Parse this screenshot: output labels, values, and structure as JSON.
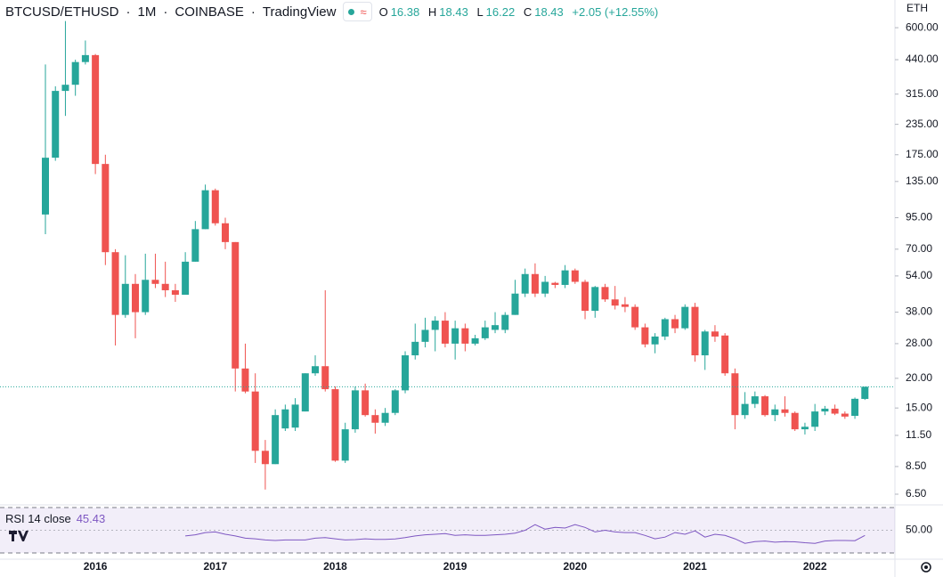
{
  "header": {
    "symbol": "BTCUSD/ETHUSD",
    "interval": "1M",
    "exchange": "COINBASE",
    "source": "TradingView",
    "ohlc_labels": [
      "O",
      "H",
      "L",
      "C"
    ],
    "change": "+2.05 (+12.55%)"
  },
  "chart_data": [
    {
      "type": "candlestick",
      "unit": "ETH",
      "categories": [
        null,
        null,
        null,
        null,
        null,
        "2016",
        null,
        null,
        null,
        null,
        null,
        null,
        null,
        null,
        null,
        null,
        null,
        "2017",
        null,
        null,
        null,
        null,
        null,
        null,
        null,
        null,
        null,
        null,
        null,
        "2018",
        null,
        null,
        null,
        null,
        null,
        null,
        null,
        null,
        null,
        null,
        null,
        "2019",
        null,
        null,
        null,
        null,
        null,
        null,
        null,
        null,
        null,
        null,
        null,
        "2020",
        null,
        null,
        null,
        null,
        null,
        null,
        null,
        null,
        null,
        null,
        null,
        "2021",
        null,
        null,
        null,
        null,
        null,
        null,
        null,
        null,
        null,
        null,
        null,
        "2022",
        null,
        null,
        null,
        null,
        null
      ],
      "open": [
        98,
        170,
        325,
        345,
        430,
        460,
        160,
        68,
        37,
        50,
        38,
        52,
        50,
        47,
        45,
        62,
        85,
        124,
        90,
        75,
        22,
        17.6,
        9.9,
        8.7,
        12.3,
        12.4,
        14.5,
        21,
        22.5,
        18,
        9,
        12.2,
        17.8,
        14,
        13,
        14.3,
        17.8,
        25,
        28.5,
        32,
        35,
        28,
        32.5,
        28,
        29.5,
        32,
        32,
        37,
        45.5,
        55,
        45.5,
        50.5,
        49.5,
        57,
        51,
        38.5,
        48.5,
        43,
        41,
        40,
        32.8,
        27.8,
        30,
        35.5,
        32.5,
        40,
        25,
        31.5,
        30.3,
        21,
        14,
        15.6,
        16.8,
        14,
        14.8,
        14.3,
        12.2,
        12.5,
        14.5,
        14.9,
        14.2,
        13.9,
        16.38
      ],
      "high": [
        420,
        340,
        640,
        440,
        530,
        465,
        175,
        70,
        66,
        55,
        67,
        67,
        62,
        50,
        68,
        92,
        131,
        126,
        95,
        75,
        28,
        21,
        11,
        14.8,
        15.5,
        16.5,
        21,
        25,
        47,
        18.5,
        13,
        18.5,
        19,
        14.8,
        15,
        18,
        26,
        34,
        36,
        36.5,
        38,
        35,
        34,
        30.5,
        35,
        38,
        38,
        52,
        58,
        61,
        54,
        51,
        60,
        58,
        52,
        49,
        50,
        49,
        44,
        41,
        34,
        31,
        36,
        37,
        41,
        41.6,
        32,
        33.5,
        31,
        22,
        17.5,
        17.6,
        17,
        15.5,
        16.8,
        14.5,
        13,
        15.6,
        15.3,
        15.5,
        14.5,
        16.6,
        18.43
      ],
      "low": [
        81,
        165,
        255,
        310,
        420,
        145,
        60,
        27.5,
        36,
        29.5,
        37,
        48,
        44,
        42,
        45,
        62,
        85,
        88,
        70,
        17.6,
        17.3,
        8.8,
        6.8,
        8.7,
        12,
        12,
        14.5,
        20.5,
        17.6,
        8.9,
        8.8,
        11.8,
        13.8,
        11.7,
        12.6,
        14,
        17.3,
        24,
        27,
        26,
        27,
        24,
        26,
        27.5,
        29,
        31,
        31,
        37,
        44,
        44,
        44,
        48,
        48,
        50,
        35.5,
        36,
        42,
        39,
        38,
        32,
        27,
        25.5,
        29,
        31,
        32,
        23.5,
        21.7,
        28.5,
        20.5,
        12.2,
        13.5,
        15,
        13.8,
        13.2,
        13.8,
        12,
        11.6,
        12,
        14,
        14,
        13.5,
        13.5,
        16.22
      ],
      "close": [
        170,
        325,
        345,
        430,
        460,
        160,
        68,
        37,
        50,
        38,
        52,
        50,
        47,
        45,
        62,
        85,
        124,
        90,
        75,
        22,
        17.6,
        9.9,
        8.7,
        14,
        14.8,
        15.5,
        21,
        22.5,
        18,
        9,
        12.2,
        17.8,
        14,
        13,
        14.3,
        17.8,
        25,
        28.5,
        32,
        35,
        28,
        32.5,
        28,
        29.5,
        32.8,
        33.5,
        37,
        45.5,
        55,
        45.5,
        51,
        49.5,
        57,
        51,
        38.5,
        48.5,
        43,
        40.5,
        40,
        32.8,
        27.8,
        30,
        35.5,
        32.5,
        40,
        25,
        31.5,
        30,
        21,
        14,
        15.6,
        16.8,
        14,
        14.8,
        14.3,
        12.2,
        12.5,
        14.5,
        14.9,
        14.2,
        13.8,
        16.4,
        18.43
      ],
      "up_color": "#26a69a",
      "down_color": "#ef5350",
      "log_scale": true,
      "ylim": [
        5.86,
        785
      ],
      "yticks": [
        {
          "value": 600,
          "label": "600.00"
        },
        {
          "value": 440,
          "label": "440.00"
        },
        {
          "value": 315,
          "label": "315.00"
        },
        {
          "value": 235,
          "label": "235.00"
        },
        {
          "value": 175,
          "label": "175.00"
        },
        {
          "value": 135,
          "label": "135.00"
        },
        {
          "value": 95,
          "label": "95.00"
        },
        {
          "value": 70,
          "label": "70.00"
        },
        {
          "value": 54,
          "label": "54.00"
        },
        {
          "value": 38,
          "label": "38.00"
        },
        {
          "value": 28,
          "label": "28.00"
        },
        {
          "value": 20,
          "label": "20.00"
        },
        {
          "value": 15,
          "label": "15.00"
        },
        {
          "value": 11.5,
          "label": "11.50"
        },
        {
          "value": 8.5,
          "label": "8.50"
        },
        {
          "value": 6.5,
          "label": "6.50"
        }
      ],
      "price_line": true,
      "grid": false
    },
    {
      "type": "line",
      "title": "RSI 14 close",
      "color": "#7e57c2",
      "values": [
        null,
        null,
        null,
        null,
        null,
        null,
        null,
        null,
        null,
        null,
        null,
        null,
        null,
        null,
        45,
        46,
        48,
        48.5,
        46.5,
        45,
        43,
        42.5,
        41.5,
        41,
        41.5,
        41.5,
        41.5,
        43,
        43.5,
        42.5,
        41.5,
        41.8,
        42.5,
        42,
        42,
        42.3,
        43.5,
        45,
        46,
        46.5,
        47,
        45.5,
        46,
        45.5,
        45.5,
        46,
        46.5,
        47.5,
        50,
        55,
        51,
        52.5,
        52,
        55,
        52.5,
        48.5,
        50,
        48.5,
        48,
        48,
        45.5,
        42.5,
        44,
        48,
        46.5,
        49.5,
        44,
        46.5,
        45.5,
        42.5,
        38.5,
        40,
        40.5,
        39.5,
        40,
        39.8,
        39,
        38.5,
        40.5,
        41,
        41,
        40.8,
        45.43
      ],
      "ylim": [
        24.5,
        72.4
      ],
      "yticks": [
        {
          "value": 50,
          "label": "50.00"
        }
      ],
      "bands": [
        70,
        30
      ]
    }
  ]
}
